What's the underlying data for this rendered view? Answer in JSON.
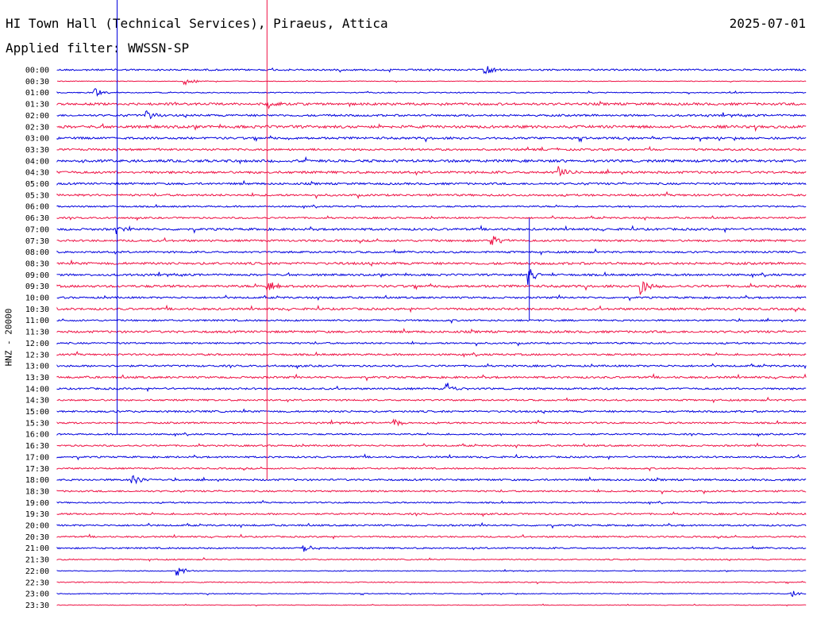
{
  "header": {
    "title": "HI Town Hall (Technical Services), Piraeus, Attica",
    "date": "2025-07-01",
    "filter": "Applied filter: WWSSN-SP"
  },
  "colors": {
    "odd_trace": "#0000dd",
    "even_trace": "#ee1144",
    "text": "#000000"
  },
  "chart_data": {
    "type": "line",
    "title": "HI Town Hall (Technical Services), Piraeus, Attica",
    "subtitle": "Applied filter: WWSSN-SP",
    "ylabel": "HNZ - 20000",
    "xlabel": "",
    "grid": false,
    "row_labels": [
      "00:00",
      "00:30",
      "01:00",
      "01:30",
      "02:00",
      "02:30",
      "03:00",
      "03:30",
      "04:00",
      "04:30",
      "05:00",
      "05:30",
      "06:00",
      "06:30",
      "07:00",
      "07:30",
      "08:00",
      "08:30",
      "09:00",
      "09:30",
      "10:00",
      "10:30",
      "11:00",
      "11:30",
      "12:00",
      "12:30",
      "13:00",
      "13:30",
      "14:00",
      "14:30",
      "15:00",
      "15:30",
      "16:00",
      "16:30",
      "17:00",
      "17:30",
      "18:00",
      "18:30",
      "19:00",
      "19:30",
      "20:00",
      "20:30",
      "21:00",
      "21:30",
      "22:00",
      "22:30",
      "23:00",
      "23:30"
    ],
    "noise_level": [
      1.0,
      0.4,
      0.6,
      1.4,
      1.2,
      1.6,
      1.3,
      1.2,
      1.5,
      1.4,
      1.2,
      1.2,
      0.9,
      1.0,
      1.3,
      1.2,
      1.1,
      1.4,
      1.2,
      1.4,
      1.1,
      1.3,
      1.0,
      1.3,
      1.0,
      1.1,
      1.1,
      1.2,
      1.1,
      1.0,
      1.1,
      1.0,
      0.9,
      1.0,
      1.0,
      0.9,
      1.1,
      1.0,
      0.8,
      1.0,
      1.0,
      0.9,
      0.9,
      0.7,
      0.5,
      0.6,
      0.5,
      0.4
    ],
    "events": [
      {
        "row": 0,
        "x": 0.57,
        "amp": 8
      },
      {
        "row": 1,
        "x": 0.17,
        "amp": 7
      },
      {
        "row": 2,
        "x": 0.05,
        "amp": 6
      },
      {
        "row": 3,
        "x": 0.28,
        "amp": 6
      },
      {
        "row": 4,
        "x": 0.12,
        "amp": 6
      },
      {
        "row": 9,
        "x": 0.67,
        "amp": 10
      },
      {
        "row": 14,
        "x": 0.08,
        "amp": 9
      },
      {
        "row": 15,
        "x": 0.58,
        "amp": 7
      },
      {
        "row": 18,
        "x": 0.63,
        "amp": 12
      },
      {
        "row": 19,
        "x": 0.28,
        "amp": 9
      },
      {
        "row": 19,
        "x": 0.78,
        "amp": 10
      },
      {
        "row": 28,
        "x": 0.52,
        "amp": 8
      },
      {
        "row": 31,
        "x": 0.45,
        "amp": 6
      },
      {
        "row": 36,
        "x": 0.1,
        "amp": 8
      },
      {
        "row": 42,
        "x": 0.33,
        "amp": 7
      },
      {
        "row": 44,
        "x": 0.16,
        "amp": 7
      },
      {
        "row": 46,
        "x": 0.98,
        "amp": 5
      }
    ],
    "long_spikes": [
      {
        "row": 0,
        "x": 0.08,
        "down_rows": 32,
        "color": "odd"
      },
      {
        "row": 0,
        "x": 0.28,
        "down_rows": 36,
        "color": "even"
      },
      {
        "row": 13,
        "x": 0.63,
        "down_rows": 9,
        "color": "odd"
      }
    ]
  }
}
